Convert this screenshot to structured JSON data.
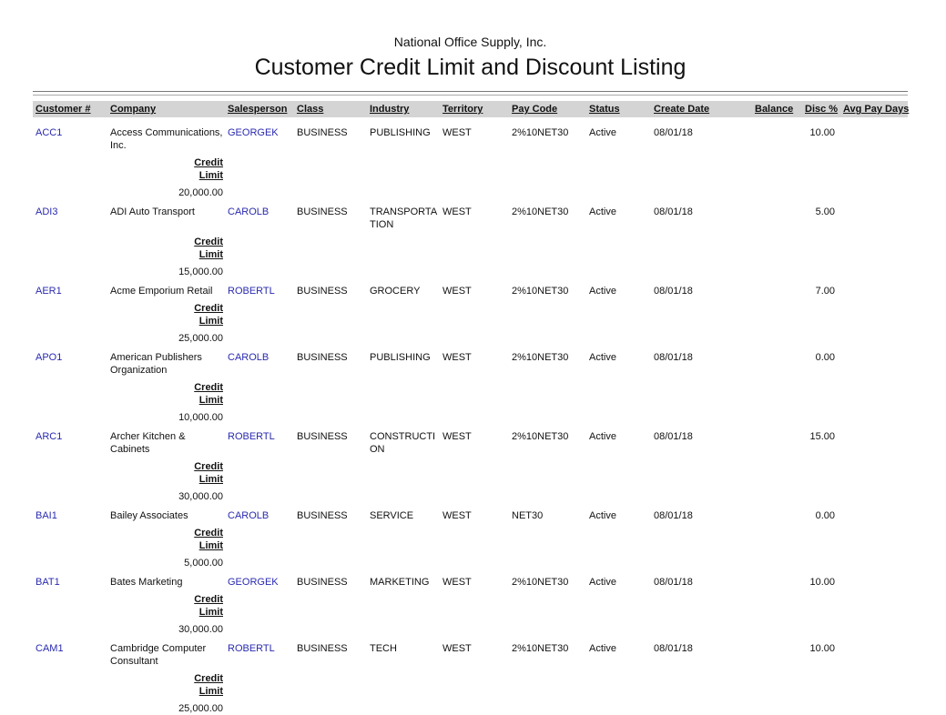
{
  "header": {
    "company": "National Office Supply, Inc.",
    "title": "Customer Credit Limit and Discount Listing"
  },
  "columns": {
    "customer": "Customer #",
    "company": "Company",
    "salesperson": "Salesperson",
    "class": "Class",
    "industry": "Industry",
    "territory": "Territory",
    "pay_code": "Pay Code",
    "status": "Status",
    "create_date": "Create Date",
    "balance": "Balance",
    "disc": "Disc %",
    "avg_pay_days": "Avg Pay Days"
  },
  "credit_limit_label": "Credit Limit",
  "records": [
    {
      "customer": "ACC1",
      "company": "Access Communications, Inc.",
      "salesperson": "GEORGEK",
      "class": "BUSINESS",
      "industry": "PUBLISHING",
      "territory": "WEST",
      "pay_code": "2%10NET30",
      "status": "Active",
      "create_date": "08/01/18",
      "disc": "10.00",
      "credit_limit": "20,000.00"
    },
    {
      "customer": "ADI3",
      "company": "ADI Auto Transport",
      "salesperson": "CAROLB",
      "class": "BUSINESS",
      "industry": "TRANSPORTATION",
      "territory": "WEST",
      "pay_code": "2%10NET30",
      "status": "Active",
      "create_date": "08/01/18",
      "disc": "5.00",
      "credit_limit": "15,000.00"
    },
    {
      "customer": "AER1",
      "company": "Acme Emporium Retail",
      "salesperson": "ROBERTL",
      "class": "BUSINESS",
      "industry": "GROCERY",
      "territory": "WEST",
      "pay_code": "2%10NET30",
      "status": "Active",
      "create_date": "08/01/18",
      "disc": "7.00",
      "credit_limit": "25,000.00"
    },
    {
      "customer": "APO1",
      "company": "American Publishers Organization",
      "salesperson": "CAROLB",
      "class": "BUSINESS",
      "industry": "PUBLISHING",
      "territory": "WEST",
      "pay_code": "2%10NET30",
      "status": "Active",
      "create_date": "08/01/18",
      "disc": "0.00",
      "credit_limit": "10,000.00"
    },
    {
      "customer": "ARC1",
      "company": "Archer Kitchen & Cabinets",
      "salesperson": "ROBERTL",
      "class": "BUSINESS",
      "industry": "CONSTRUCTION",
      "territory": "WEST",
      "pay_code": "2%10NET30",
      "status": "Active",
      "create_date": "08/01/18",
      "disc": "15.00",
      "credit_limit": "30,000.00"
    },
    {
      "customer": "BAI1",
      "company": "Bailey Associates",
      "salesperson": "CAROLB",
      "class": "BUSINESS",
      "industry": "SERVICE",
      "territory": "WEST",
      "pay_code": "NET30",
      "status": "Active",
      "create_date": "08/01/18",
      "disc": "0.00",
      "credit_limit": "5,000.00"
    },
    {
      "customer": "BAT1",
      "company": "Bates Marketing",
      "salesperson": "GEORGEK",
      "class": "BUSINESS",
      "industry": "MARKETING",
      "territory": "WEST",
      "pay_code": "2%10NET30",
      "status": "Active",
      "create_date": "08/01/18",
      "disc": "10.00",
      "credit_limit": "30,000.00"
    },
    {
      "customer": "CAM1",
      "company": "Cambridge Computer Consultant",
      "salesperson": "ROBERTL",
      "class": "BUSINESS",
      "industry": "TECH",
      "territory": "WEST",
      "pay_code": "2%10NET30",
      "status": "Active",
      "create_date": "08/01/18",
      "disc": "10.00",
      "credit_limit": "25,000.00"
    }
  ]
}
